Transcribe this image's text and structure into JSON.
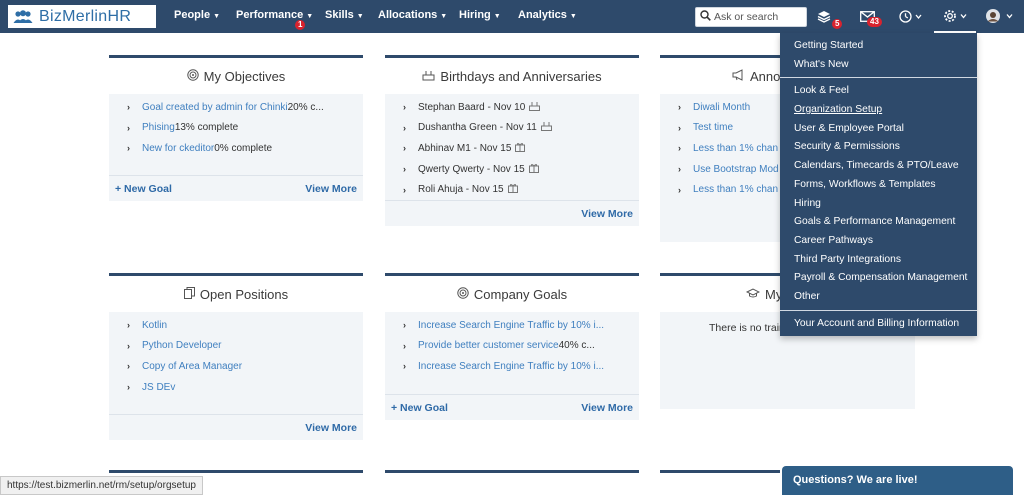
{
  "brand": {
    "name": "BizMerlinHR"
  },
  "nav": {
    "items": [
      {
        "label": "People"
      },
      {
        "label": "Performance",
        "badge": "1"
      },
      {
        "label": "Skills"
      },
      {
        "label": "Allocations"
      },
      {
        "label": "Hiring"
      },
      {
        "label": "Analytics"
      }
    ],
    "search_placeholder": "Ask or search",
    "layers_badge": "5",
    "mail_badge": "43"
  },
  "cards": {
    "objectives": {
      "title": "My Objectives",
      "rows": [
        {
          "link": "Goal created by admin for Chinki",
          "text": " 20% c..."
        },
        {
          "link": "Phising",
          "text": " 13% complete"
        },
        {
          "link": "New for ckeditor",
          "text": " 0% complete"
        }
      ],
      "foot_left": "+ New Goal",
      "foot_right": "View More"
    },
    "birthdays": {
      "title": "Birthdays and Anniversaries",
      "rows": [
        {
          "text": "Stephan Baard - Nov 10",
          "icon": "cake-icon"
        },
        {
          "text": "Dushantha Green - Nov 11",
          "icon": "cake-icon"
        },
        {
          "text": "Abhinav M1 - Nov 15",
          "icon": "gift-icon"
        },
        {
          "text": "Qwerty Qwerty - Nov 15",
          "icon": "gift-icon"
        },
        {
          "text": "Roli Ahuja - Nov 15",
          "icon": "gift-icon"
        }
      ],
      "foot_right": "View More"
    },
    "announcements": {
      "title": "Anno",
      "rows": [
        {
          "link": "Diwali Month"
        },
        {
          "link": "Test time"
        },
        {
          "link": "Less than 1% chan"
        },
        {
          "link": "Use Bootstrap Mod"
        },
        {
          "link": "Less than 1% chan"
        }
      ]
    },
    "positions": {
      "title": "Open Positions",
      "rows": [
        {
          "link": "Kotlin"
        },
        {
          "link": "Python Developer"
        },
        {
          "link": "Copy of Area Manager"
        },
        {
          "link": "JS DEv"
        }
      ],
      "foot_right": "View More"
    },
    "company_goals": {
      "title": "Company Goals",
      "rows": [
        {
          "link": "Increase Search Engine Traffic by 10% i...",
          "text": ""
        },
        {
          "link": "Provide better customer service",
          "text": " 40% c..."
        },
        {
          "link": "Increase Search Engine Traffic by 10% i...",
          "text": ""
        }
      ],
      "foot_left": "+ New Goal",
      "foot_right": "View More"
    },
    "training": {
      "title": "My",
      "empty": "There is no trair"
    }
  },
  "dropdown": {
    "group1": [
      "Getting Started",
      "What's New"
    ],
    "group2": [
      "Look & Feel",
      "Organization Setup",
      "User & Employee Portal",
      "Security & Permissions",
      "Calendars, Timecards & PTO/Leave",
      "Forms, Workflows & Templates",
      "Hiring",
      "Goals & Performance Management",
      "Career Pathways",
      "Third Party Integrations",
      "Payroll & Compensation Management",
      "Other"
    ],
    "group3": [
      "Your Account and Billing Information"
    ]
  },
  "status_url": "https://test.bizmerlin.net/rm/setup/orgsetup",
  "chat_label": "Questions? We are live!",
  "colors": {
    "nav_bg": "#2e4a6b",
    "link": "#3f7fbf",
    "badge": "#d9232e"
  }
}
